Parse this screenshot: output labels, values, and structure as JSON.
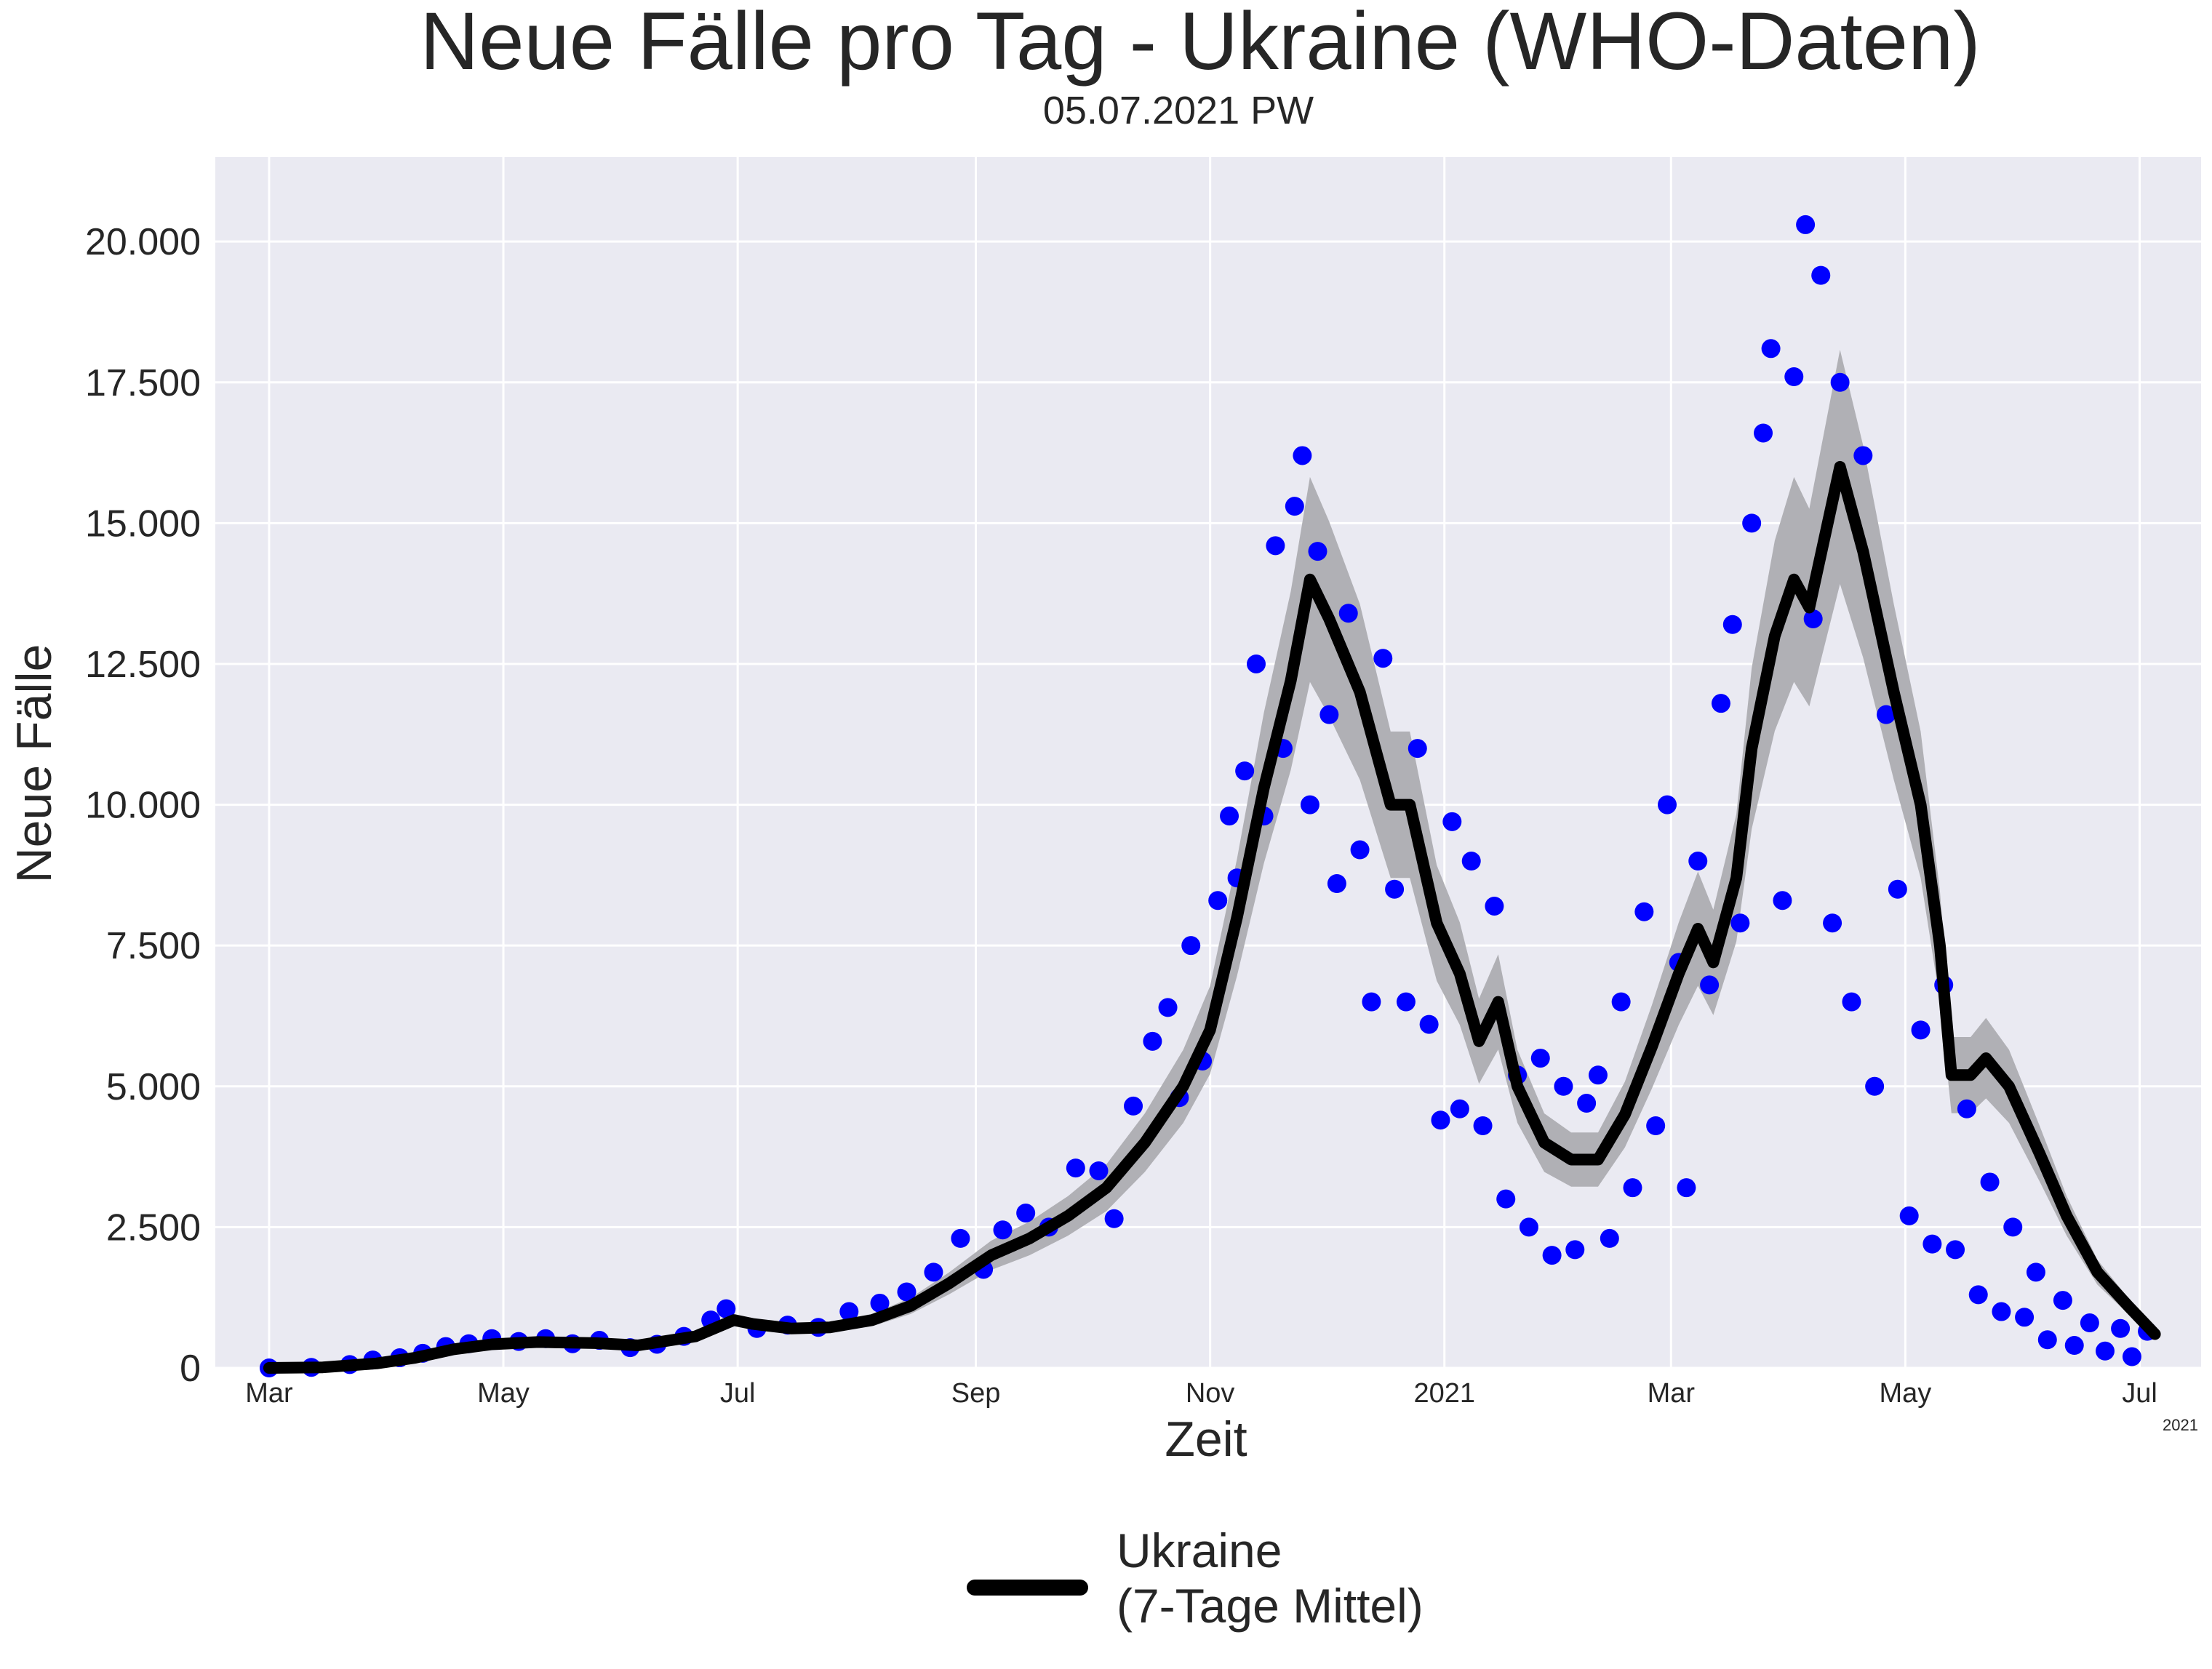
{
  "chart_data": {
    "type": "scatter",
    "title": "Neue Fälle pro Tag - Ukraine (WHO-Daten)",
    "subtitle": "05.07.2021 PW",
    "xlabel": "Zeit",
    "ylabel": "Neue Fälle",
    "x_offset_label": "2021",
    "x_range": [
      "2020-02-16",
      "2021-07-17"
    ],
    "ylim": [
      0,
      21500
    ],
    "y_ticks": [
      {
        "value": 0,
        "label": "0"
      },
      {
        "value": 2500,
        "label": "2.500"
      },
      {
        "value": 5000,
        "label": "5.000"
      },
      {
        "value": 7500,
        "label": "7.500"
      },
      {
        "value": 10000,
        "label": "10.000"
      },
      {
        "value": 12500,
        "label": "12.500"
      },
      {
        "value": 15000,
        "label": "15.000"
      },
      {
        "value": 17500,
        "label": "17.500"
      },
      {
        "value": 20000,
        "label": "20.000"
      }
    ],
    "x_ticks": [
      {
        "date": "2020-03-01",
        "label": "Mar"
      },
      {
        "date": "2020-05-01",
        "label": "May"
      },
      {
        "date": "2020-07-01",
        "label": "Jul"
      },
      {
        "date": "2020-09-01",
        "label": "Sep"
      },
      {
        "date": "2020-11-01",
        "label": "Nov"
      },
      {
        "date": "2021-01-01",
        "label": "2021"
      },
      {
        "date": "2021-03-01",
        "label": "Mar"
      },
      {
        "date": "2021-05-01",
        "label": "May"
      },
      {
        "date": "2021-07-01",
        "label": "Jul"
      }
    ],
    "grid": true,
    "background": "#eaeaf2",
    "legend_position": "bottom-center",
    "series": [
      {
        "name": "Ukraine\n(7-Tage Mittel)",
        "kind": "line",
        "color": "#000000",
        "band_color": "#b0b0b5",
        "points": [
          [
            "2020-03-01",
            0
          ],
          [
            "2020-03-15",
            10
          ],
          [
            "2020-03-29",
            80
          ],
          [
            "2020-04-08",
            180
          ],
          [
            "2020-04-18",
            330
          ],
          [
            "2020-04-28",
            420
          ],
          [
            "2020-05-10",
            460
          ],
          [
            "2020-05-25",
            440
          ],
          [
            "2020-06-05",
            400
          ],
          [
            "2020-06-20",
            560
          ],
          [
            "2020-06-30",
            850
          ],
          [
            "2020-07-05",
            780
          ],
          [
            "2020-07-15",
            700
          ],
          [
            "2020-07-25",
            720
          ],
          [
            "2020-08-05",
            850
          ],
          [
            "2020-08-15",
            1100
          ],
          [
            "2020-08-25",
            1500
          ],
          [
            "2020-09-05",
            2000
          ],
          [
            "2020-09-15",
            2300
          ],
          [
            "2020-09-25",
            2700
          ],
          [
            "2020-10-05",
            3200
          ],
          [
            "2020-10-15",
            4000
          ],
          [
            "2020-10-25",
            5000
          ],
          [
            "2020-11-01",
            6000
          ],
          [
            "2020-11-08",
            8000
          ],
          [
            "2020-11-15",
            10300
          ],
          [
            "2020-11-22",
            12200
          ],
          [
            "2020-11-27",
            14000
          ],
          [
            "2020-12-02",
            13300
          ],
          [
            "2020-12-10",
            12000
          ],
          [
            "2020-12-18",
            10000
          ],
          [
            "2020-12-23",
            10000
          ],
          [
            "2020-12-30",
            7900
          ],
          [
            "2021-01-05",
            7000
          ],
          [
            "2021-01-10",
            5800
          ],
          [
            "2021-01-15",
            6500
          ],
          [
            "2021-01-20",
            5000
          ],
          [
            "2021-01-27",
            4000
          ],
          [
            "2021-02-03",
            3700
          ],
          [
            "2021-02-10",
            3700
          ],
          [
            "2021-02-17",
            4500
          ],
          [
            "2021-02-24",
            5700
          ],
          [
            "2021-03-03",
            7000
          ],
          [
            "2021-03-08",
            7800
          ],
          [
            "2021-03-12",
            7200
          ],
          [
            "2021-03-18",
            8700
          ],
          [
            "2021-03-22",
            11000
          ],
          [
            "2021-03-28",
            13000
          ],
          [
            "2021-04-02",
            14000
          ],
          [
            "2021-04-06",
            13500
          ],
          [
            "2021-04-14",
            16000
          ],
          [
            "2021-04-20",
            14500
          ],
          [
            "2021-04-28",
            12000
          ],
          [
            "2021-05-05",
            10000
          ],
          [
            "2021-05-10",
            7500
          ],
          [
            "2021-05-13",
            5200
          ],
          [
            "2021-05-18",
            5200
          ],
          [
            "2021-05-22",
            5500
          ],
          [
            "2021-05-28",
            5000
          ],
          [
            "2021-06-05",
            3800
          ],
          [
            "2021-06-12",
            2700
          ],
          [
            "2021-06-20",
            1700
          ],
          [
            "2021-06-28",
            1100
          ],
          [
            "2021-07-05",
            600
          ]
        ]
      },
      {
        "name": "",
        "kind": "scatter",
        "color": "#0000ff",
        "points": [
          [
            "2020-03-01",
            0
          ],
          [
            "2020-03-12",
            10
          ],
          [
            "2020-03-22",
            60
          ],
          [
            "2020-03-28",
            140
          ],
          [
            "2020-04-04",
            180
          ],
          [
            "2020-04-10",
            260
          ],
          [
            "2020-04-16",
            380
          ],
          [
            "2020-04-22",
            430
          ],
          [
            "2020-04-28",
            520
          ],
          [
            "2020-05-05",
            470
          ],
          [
            "2020-05-12",
            520
          ],
          [
            "2020-05-19",
            430
          ],
          [
            "2020-05-26",
            490
          ],
          [
            "2020-06-03",
            360
          ],
          [
            "2020-06-10",
            420
          ],
          [
            "2020-06-17",
            560
          ],
          [
            "2020-06-24",
            850
          ],
          [
            "2020-06-28",
            1050
          ],
          [
            "2020-07-06",
            700
          ],
          [
            "2020-07-14",
            760
          ],
          [
            "2020-07-22",
            720
          ],
          [
            "2020-07-30",
            1000
          ],
          [
            "2020-08-07",
            1150
          ],
          [
            "2020-08-14",
            1350
          ],
          [
            "2020-08-21",
            1700
          ],
          [
            "2020-08-28",
            2300
          ],
          [
            "2020-09-03",
            1750
          ],
          [
            "2020-09-08",
            2450
          ],
          [
            "2020-09-14",
            2750
          ],
          [
            "2020-09-20",
            2500
          ],
          [
            "2020-09-27",
            3550
          ],
          [
            "2020-10-03",
            3500
          ],
          [
            "2020-10-07",
            2650
          ],
          [
            "2020-10-12",
            4650
          ],
          [
            "2020-10-17",
            5800
          ],
          [
            "2020-10-21",
            6400
          ],
          [
            "2020-10-24",
            4800
          ],
          [
            "2020-10-27",
            7500
          ],
          [
            "2020-10-30",
            5450
          ],
          [
            "2020-11-03",
            8300
          ],
          [
            "2020-11-06",
            9800
          ],
          [
            "2020-11-08",
            8700
          ],
          [
            "2020-11-10",
            10600
          ],
          [
            "2020-11-13",
            12500
          ],
          [
            "2020-11-15",
            9800
          ],
          [
            "2020-11-18",
            14600
          ],
          [
            "2020-11-20",
            11000
          ],
          [
            "2020-11-23",
            15300
          ],
          [
            "2020-11-25",
            16200
          ],
          [
            "2020-11-27",
            10000
          ],
          [
            "2020-11-29",
            14500
          ],
          [
            "2020-12-02",
            11600
          ],
          [
            "2020-12-04",
            8600
          ],
          [
            "2020-12-07",
            13400
          ],
          [
            "2020-12-10",
            9200
          ],
          [
            "2020-12-13",
            6500
          ],
          [
            "2020-12-16",
            12600
          ],
          [
            "2020-12-19",
            8500
          ],
          [
            "2020-12-22",
            6500
          ],
          [
            "2020-12-25",
            11000
          ],
          [
            "2020-12-28",
            6100
          ],
          [
            "2020-12-31",
            4400
          ],
          [
            "2021-01-03",
            9700
          ],
          [
            "2021-01-05",
            4600
          ],
          [
            "2021-01-08",
            9000
          ],
          [
            "2021-01-11",
            4300
          ],
          [
            "2021-01-14",
            8200
          ],
          [
            "2021-01-17",
            3000
          ],
          [
            "2021-01-20",
            5200
          ],
          [
            "2021-01-23",
            2500
          ],
          [
            "2021-01-26",
            5500
          ],
          [
            "2021-01-29",
            2000
          ],
          [
            "2021-02-01",
            5000
          ],
          [
            "2021-02-04",
            2100
          ],
          [
            "2021-02-07",
            4700
          ],
          [
            "2021-02-10",
            5200
          ],
          [
            "2021-02-13",
            2300
          ],
          [
            "2021-02-16",
            6500
          ],
          [
            "2021-02-19",
            3200
          ],
          [
            "2021-02-22",
            8100
          ],
          [
            "2021-02-25",
            4300
          ],
          [
            "2021-02-28",
            10000
          ],
          [
            "2021-03-03",
            7200
          ],
          [
            "2021-03-05",
            3200
          ],
          [
            "2021-03-08",
            9000
          ],
          [
            "2021-03-11",
            6800
          ],
          [
            "2021-03-14",
            11800
          ],
          [
            "2021-03-17",
            13200
          ],
          [
            "2021-03-19",
            7900
          ],
          [
            "2021-03-22",
            15000
          ],
          [
            "2021-03-25",
            16600
          ],
          [
            "2021-03-27",
            18100
          ],
          [
            "2021-03-30",
            8300
          ],
          [
            "2021-04-02",
            17600
          ],
          [
            "2021-04-05",
            20300
          ],
          [
            "2021-04-07",
            13300
          ],
          [
            "2021-04-09",
            19400
          ],
          [
            "2021-04-12",
            7900
          ],
          [
            "2021-04-14",
            17500
          ],
          [
            "2021-04-17",
            6500
          ],
          [
            "2021-04-20",
            16200
          ],
          [
            "2021-04-23",
            5000
          ],
          [
            "2021-04-26",
            11600
          ],
          [
            "2021-04-29",
            8500
          ],
          [
            "2021-05-02",
            2700
          ],
          [
            "2021-05-05",
            6000
          ],
          [
            "2021-05-08",
            2200
          ],
          [
            "2021-05-11",
            6800
          ],
          [
            "2021-05-14",
            2100
          ],
          [
            "2021-05-17",
            4600
          ],
          [
            "2021-05-20",
            1300
          ],
          [
            "2021-05-23",
            3300
          ],
          [
            "2021-05-26",
            1000
          ],
          [
            "2021-05-29",
            2500
          ],
          [
            "2021-06-01",
            900
          ],
          [
            "2021-06-04",
            1700
          ],
          [
            "2021-06-07",
            500
          ],
          [
            "2021-06-11",
            1200
          ],
          [
            "2021-06-14",
            400
          ],
          [
            "2021-06-18",
            800
          ],
          [
            "2021-06-22",
            300
          ],
          [
            "2021-06-26",
            700
          ],
          [
            "2021-06-29",
            200
          ],
          [
            "2021-07-03",
            650
          ]
        ]
      }
    ]
  }
}
